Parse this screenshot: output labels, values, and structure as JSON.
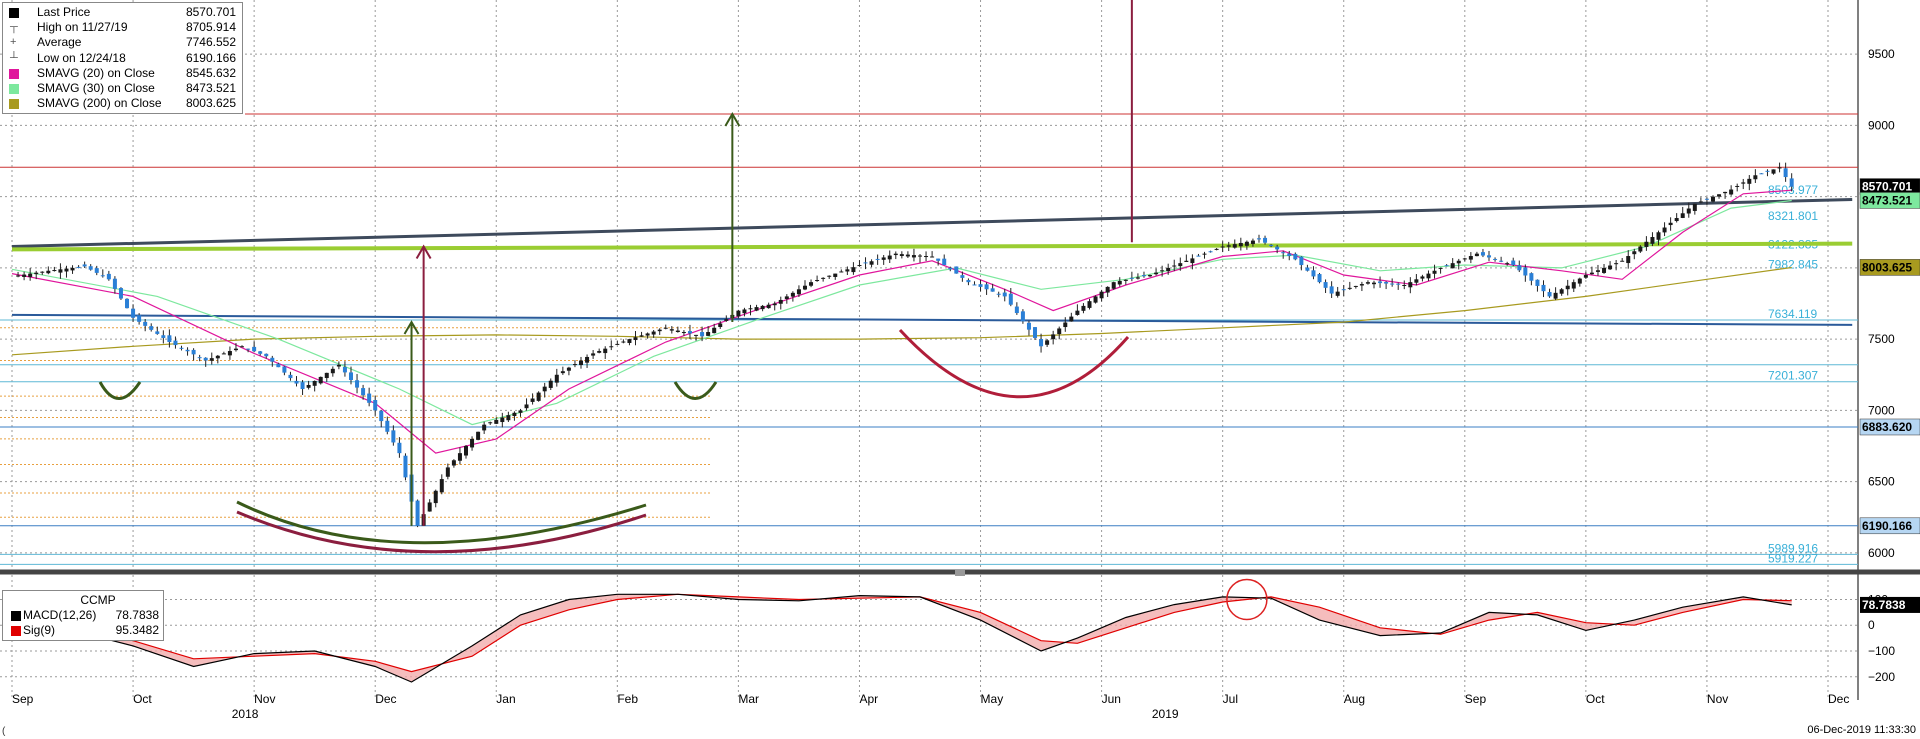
{
  "legend": [
    {
      "label": "Last Price",
      "value": "8570.701",
      "color": "#000000",
      "glyph": "square"
    },
    {
      "label": "High on 11/27/19",
      "value": "8705.914",
      "color": "#555555",
      "glyph": "high"
    },
    {
      "label": "Average",
      "value": "7746.552",
      "color": "#555555",
      "glyph": "avg"
    },
    {
      "label": "Low on 12/24/18",
      "value": "6190.166",
      "color": "#555555",
      "glyph": "low"
    },
    {
      "label": "SMAVG (20)  on Close",
      "value": "8545.632",
      "color": "#e0169c",
      "glyph": "square"
    },
    {
      "label": "SMAVG (30)  on Close",
      "value": "8473.521",
      "color": "#7de89e",
      "glyph": "square"
    },
    {
      "label": "SMAVG (200)  on Close",
      "value": "8003.625",
      "color": "#a89a1f",
      "glyph": "square"
    }
  ],
  "macd_legend": {
    "title": "CCMP",
    "rows": [
      {
        "label": "MACD(12,26)",
        "value": "78.7838",
        "color": "#000000"
      },
      {
        "label": "Sig(9)",
        "value": "95.3482",
        "color": "#e00000"
      }
    ]
  },
  "chart_data": {
    "type": "candlestick",
    "y_range": [
      5880,
      9880
    ],
    "y_ticks": [
      6000,
      6500,
      7000,
      7500,
      8000,
      8500,
      9000,
      9500
    ],
    "x_months": [
      {
        "label": "Sep",
        "pos": 0.0
      },
      {
        "label": "Oct",
        "pos": 1.0
      },
      {
        "label": "Nov",
        "pos": 2.0
      },
      {
        "label": "Dec",
        "pos": 3.0
      },
      {
        "label": "Jan",
        "pos": 4.0
      },
      {
        "label": "Feb",
        "pos": 5.0
      },
      {
        "label": "Mar",
        "pos": 6.0
      },
      {
        "label": "Apr",
        "pos": 7.0
      },
      {
        "label": "May",
        "pos": 8.0
      },
      {
        "label": "Jun",
        "pos": 9.0
      },
      {
        "label": "Jul",
        "pos": 10.0
      },
      {
        "label": "Aug",
        "pos": 11.0
      },
      {
        "label": "Sep",
        "pos": 12.0
      },
      {
        "label": "Oct",
        "pos": 13.0
      },
      {
        "label": "Nov",
        "pos": 14.0
      },
      {
        "label": "Dec",
        "pos": 15.0
      }
    ],
    "x_years": [
      {
        "label": "2018",
        "pos": 1.65
      },
      {
        "label": "2019",
        "pos": 9.25
      }
    ],
    "price_path": [
      [
        0,
        7940
      ],
      [
        0.3,
        7980
      ],
      [
        0.6,
        8010
      ],
      [
        0.8,
        7920
      ],
      [
        1.0,
        7650
      ],
      [
        1.3,
        7480
      ],
      [
        1.6,
        7350
      ],
      [
        1.9,
        7450
      ],
      [
        2.1,
        7380
      ],
      [
        2.4,
        7150
      ],
      [
        2.7,
        7320
      ],
      [
        3.0,
        7000
      ],
      [
        3.2,
        6700
      ],
      [
        3.35,
        6190
      ],
      [
        3.6,
        6600
      ],
      [
        3.9,
        6900
      ],
      [
        4.2,
        7000
      ],
      [
        4.5,
        7250
      ],
      [
        4.8,
        7400
      ],
      [
        5.1,
        7500
      ],
      [
        5.4,
        7580
      ],
      [
        5.7,
        7520
      ],
      [
        6.0,
        7700
      ],
      [
        6.3,
        7750
      ],
      [
        6.6,
        7900
      ],
      [
        7.0,
        8020
      ],
      [
        7.3,
        8100
      ],
      [
        7.6,
        8080
      ],
      [
        7.9,
        7900
      ],
      [
        8.2,
        7800
      ],
      [
        8.5,
        7450
      ],
      [
        8.8,
        7700
      ],
      [
        9.1,
        7900
      ],
      [
        9.4,
        7950
      ],
      [
        9.7,
        8050
      ],
      [
        10.0,
        8150
      ],
      [
        10.3,
        8200
      ],
      [
        10.6,
        8060
      ],
      [
        10.9,
        7820
      ],
      [
        11.2,
        7900
      ],
      [
        11.5,
        7880
      ],
      [
        11.8,
        8000
      ],
      [
        12.1,
        8100
      ],
      [
        12.4,
        8020
      ],
      [
        12.7,
        7800
      ],
      [
        13.0,
        7950
      ],
      [
        13.3,
        8050
      ],
      [
        13.6,
        8250
      ],
      [
        13.9,
        8450
      ],
      [
        14.2,
        8550
      ],
      [
        14.4,
        8650
      ],
      [
        14.6,
        8705
      ],
      [
        14.7,
        8570
      ]
    ],
    "sma20_path": [
      [
        0,
        7960
      ],
      [
        1.0,
        7800
      ],
      [
        2.0,
        7400
      ],
      [
        3.0,
        7050
      ],
      [
        3.5,
        6700
      ],
      [
        4.0,
        6800
      ],
      [
        4.6,
        7150
      ],
      [
        5.4,
        7480
      ],
      [
        6.2,
        7720
      ],
      [
        7.0,
        7950
      ],
      [
        7.6,
        8050
      ],
      [
        8.2,
        7850
      ],
      [
        8.6,
        7700
      ],
      [
        9.2,
        7880
      ],
      [
        10.0,
        8080
      ],
      [
        10.5,
        8120
      ],
      [
        11.0,
        7950
      ],
      [
        11.6,
        7880
      ],
      [
        12.2,
        8040
      ],
      [
        12.8,
        7980
      ],
      [
        13.3,
        7920
      ],
      [
        13.8,
        8250
      ],
      [
        14.3,
        8520
      ],
      [
        14.7,
        8545
      ]
    ],
    "sma30_path": [
      [
        0,
        7990
      ],
      [
        1.2,
        7800
      ],
      [
        2.2,
        7500
      ],
      [
        3.2,
        7150
      ],
      [
        3.8,
        6900
      ],
      [
        4.5,
        7050
      ],
      [
        5.3,
        7380
      ],
      [
        6.2,
        7650
      ],
      [
        7.0,
        7880
      ],
      [
        7.8,
        8000
      ],
      [
        8.5,
        7850
      ],
      [
        9.2,
        7920
      ],
      [
        10.0,
        8060
      ],
      [
        10.6,
        8090
      ],
      [
        11.3,
        7980
      ],
      [
        12.0,
        8020
      ],
      [
        12.8,
        8000
      ],
      [
        13.5,
        8150
      ],
      [
        14.2,
        8420
      ],
      [
        14.7,
        8473
      ]
    ],
    "sma200_path": [
      [
        0,
        7390
      ],
      [
        1.0,
        7450
      ],
      [
        2.0,
        7500
      ],
      [
        3.0,
        7520
      ],
      [
        4.0,
        7530
      ],
      [
        5.0,
        7520
      ],
      [
        6.0,
        7500
      ],
      [
        7.0,
        7500
      ],
      [
        8.0,
        7510
      ],
      [
        9.0,
        7540
      ],
      [
        10.0,
        7580
      ],
      [
        11.0,
        7620
      ],
      [
        12.0,
        7700
      ],
      [
        13.0,
        7800
      ],
      [
        14.0,
        7920
      ],
      [
        14.7,
        8003
      ]
    ],
    "right_labels": [
      {
        "text": "8570.701",
        "value": 8570.701,
        "bg": "#000000",
        "fg": "#ffffff"
      },
      {
        "text": "8473.521",
        "value": 8473.521,
        "bg": "#7de89e",
        "fg": "#000000"
      },
      {
        "text": "8003.625",
        "value": 8003.625,
        "bg": "#a89a1f",
        "fg": "#000000"
      },
      {
        "text": "6883.620",
        "value": 6883.62,
        "bg": "#b6d6f2",
        "fg": "#000000"
      },
      {
        "text": "6190.166",
        "value": 6190.166,
        "bg": "#b6d6f2",
        "fg": "#000000"
      }
    ],
    "level_labels": [
      {
        "text": "8503.977",
        "value": 8503.977
      },
      {
        "text": "8321.801",
        "value": 8321.801
      },
      {
        "text": "8122.885",
        "value": 8122.885
      },
      {
        "text": "7982.845",
        "value": 7982.845
      },
      {
        "text": "7634.119",
        "value": 7634.119
      },
      {
        "text": "7201.307",
        "value": 7201.307
      },
      {
        "text": "5989.916",
        "value": 5989.916
      },
      {
        "text": "5919.227",
        "value": 5919.227
      }
    ],
    "hlines": [
      {
        "value": 9080,
        "color": "#c33"
      },
      {
        "value": 8705.914,
        "color": "#c33"
      },
      {
        "value": 6883.62,
        "color": "#3b7fc4"
      },
      {
        "value": 6190.166,
        "color": "#3b7fc4"
      },
      {
        "value": 7634.119,
        "color": "#5fb8d6"
      },
      {
        "value": 7201.307,
        "color": "#5fb8d6"
      },
      {
        "value": 7320,
        "color": "#5fb8d6"
      },
      {
        "value": 5989.916,
        "color": "#5fb8d6"
      },
      {
        "value": 5919.227,
        "color": "#5fb8d6"
      }
    ],
    "dotted_levels": [
      7580,
      7350,
      7100,
      6950,
      6800,
      6620,
      6420,
      6250
    ],
    "trendlines": [
      {
        "x0": 0,
        "y0": 8150,
        "x1": 15.2,
        "y1": 8480,
        "color": "#3e4a5c",
        "w": 3
      },
      {
        "x0": 0,
        "y0": 8130,
        "x1": 15.2,
        "y1": 8170,
        "color": "#9acd32",
        "w": 4
      },
      {
        "x0": 0,
        "y0": 7670,
        "x1": 15.2,
        "y1": 7600,
        "color": "#2a5a9a",
        "w": 2
      }
    ],
    "macd": {
      "y_range": [
        -290,
        160
      ],
      "y_ticks": [
        100,
        0,
        -100,
        -200
      ],
      "macd_path": [
        [
          0,
          0
        ],
        [
          0.5,
          -20
        ],
        [
          1.0,
          -80
        ],
        [
          1.5,
          -160
        ],
        [
          2.0,
          -110
        ],
        [
          2.5,
          -100
        ],
        [
          3.0,
          -160
        ],
        [
          3.3,
          -220
        ],
        [
          3.8,
          -80
        ],
        [
          4.2,
          40
        ],
        [
          4.6,
          100
        ],
        [
          5.0,
          120
        ],
        [
          5.5,
          120
        ],
        [
          6.0,
          100
        ],
        [
          6.5,
          95
        ],
        [
          7.0,
          115
        ],
        [
          7.5,
          110
        ],
        [
          8.0,
          20
        ],
        [
          8.5,
          -100
        ],
        [
          8.8,
          -50
        ],
        [
          9.2,
          30
        ],
        [
          9.6,
          80
        ],
        [
          10.0,
          110
        ],
        [
          10.4,
          105
        ],
        [
          10.8,
          20
        ],
        [
          11.3,
          -40
        ],
        [
          11.8,
          -30
        ],
        [
          12.2,
          50
        ],
        [
          12.6,
          40
        ],
        [
          13.0,
          -20
        ],
        [
          13.4,
          20
        ],
        [
          13.8,
          70
        ],
        [
          14.3,
          110
        ],
        [
          14.7,
          78.78
        ]
      ],
      "sig_path": [
        [
          0,
          10
        ],
        [
          0.5,
          -10
        ],
        [
          1.0,
          -60
        ],
        [
          1.5,
          -130
        ],
        [
          2.0,
          -120
        ],
        [
          2.5,
          -110
        ],
        [
          3.0,
          -140
        ],
        [
          3.3,
          -180
        ],
        [
          3.8,
          -120
        ],
        [
          4.2,
          0
        ],
        [
          4.6,
          60
        ],
        [
          5.0,
          100
        ],
        [
          5.5,
          120
        ],
        [
          6.0,
          110
        ],
        [
          6.5,
          100
        ],
        [
          7.0,
          105
        ],
        [
          7.5,
          110
        ],
        [
          8.0,
          50
        ],
        [
          8.5,
          -60
        ],
        [
          8.8,
          -70
        ],
        [
          9.2,
          -10
        ],
        [
          9.6,
          50
        ],
        [
          10.0,
          90
        ],
        [
          10.4,
          110
        ],
        [
          10.8,
          70
        ],
        [
          11.3,
          -10
        ],
        [
          11.8,
          -35
        ],
        [
          12.2,
          20
        ],
        [
          12.6,
          50
        ],
        [
          13.0,
          10
        ],
        [
          13.4,
          0
        ],
        [
          13.8,
          50
        ],
        [
          14.3,
          100
        ],
        [
          14.7,
          95.35
        ]
      ],
      "label": {
        "text": "78.7838",
        "value": 78.7838
      }
    }
  },
  "footer_left": "(",
  "footer": "06-Dec-2019 11:33:30"
}
